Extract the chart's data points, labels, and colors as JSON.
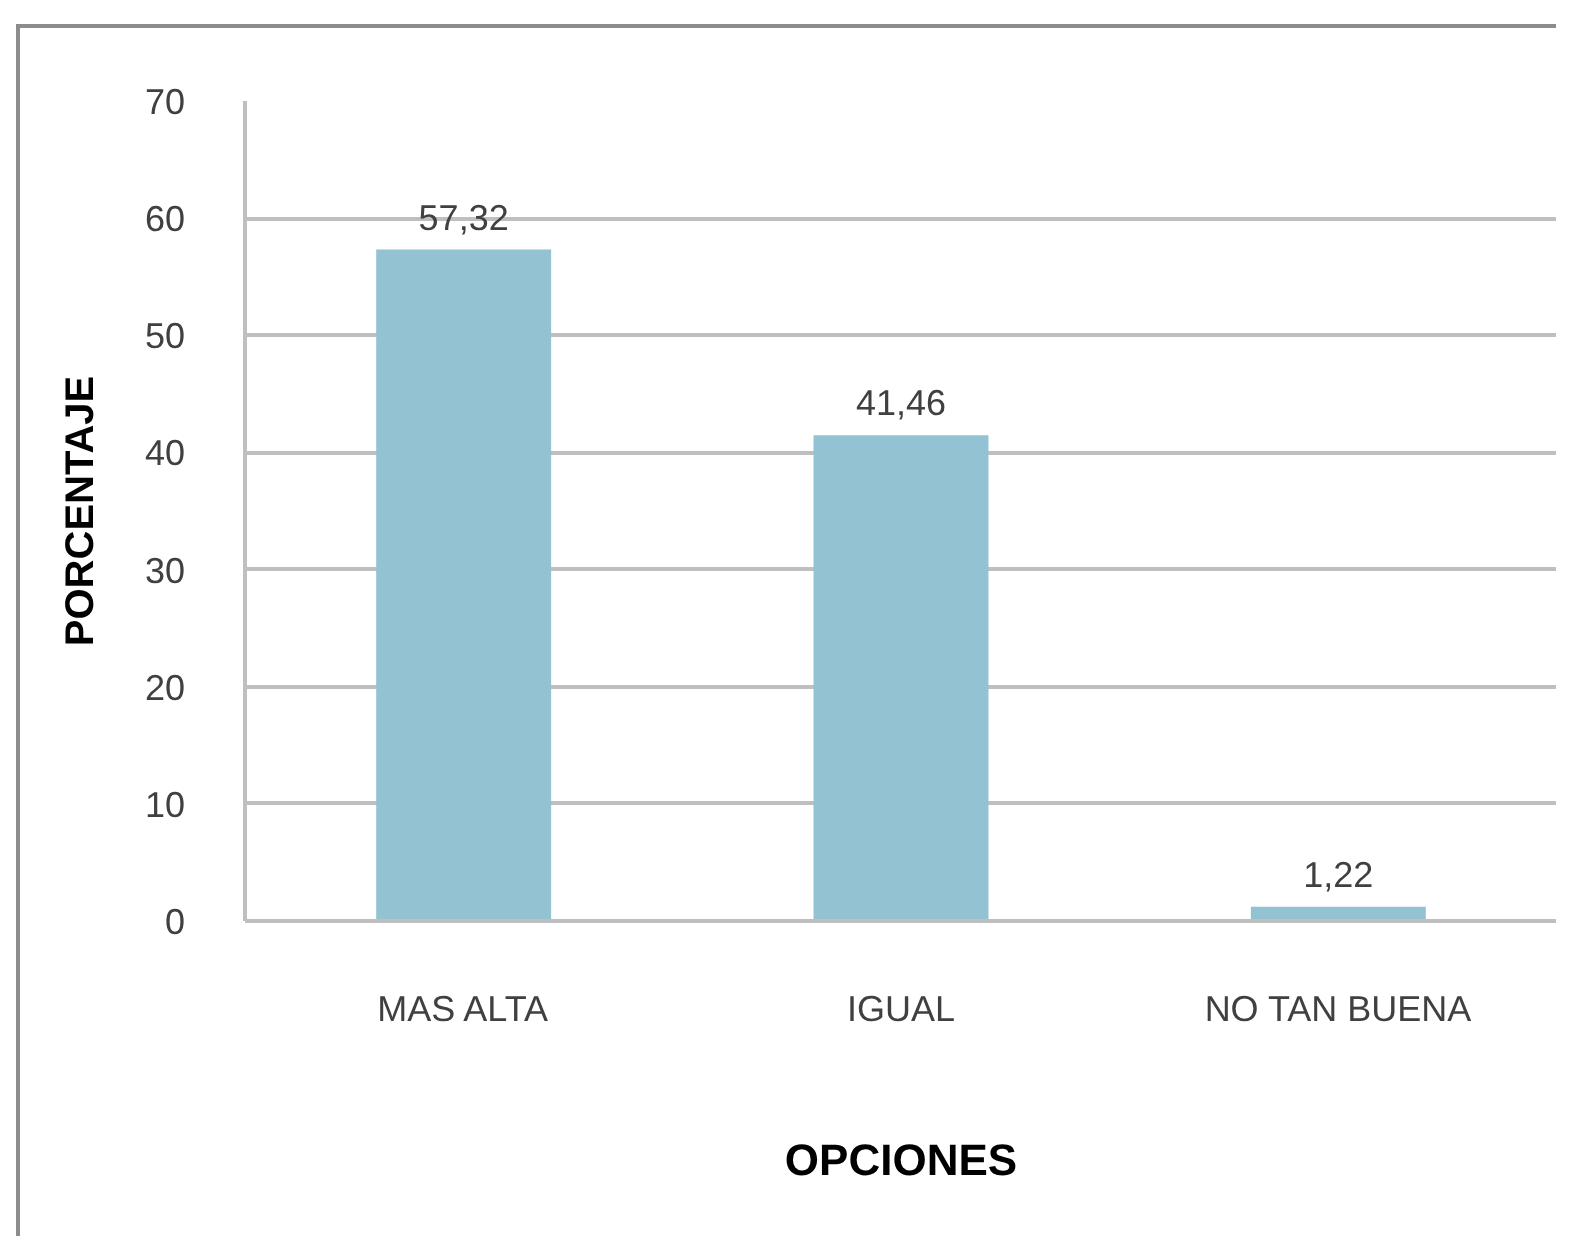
{
  "chart_data": {
    "type": "bar",
    "categories": [
      "MAS ALTA",
      "IGUAL",
      "NO TAN BUENA"
    ],
    "values": [
      57.32,
      41.46,
      1.22
    ],
    "color": "#93c2d3",
    "value_labels": [
      "57,32",
      "41,46",
      "1,22"
    ],
    "xlabel": "OPCIONES",
    "ylabel": "PORCENTAJE",
    "ylim": [
      0,
      70
    ],
    "yticks": [
      0,
      10,
      20,
      30,
      40,
      50,
      60,
      70
    ],
    "grid": "y"
  }
}
